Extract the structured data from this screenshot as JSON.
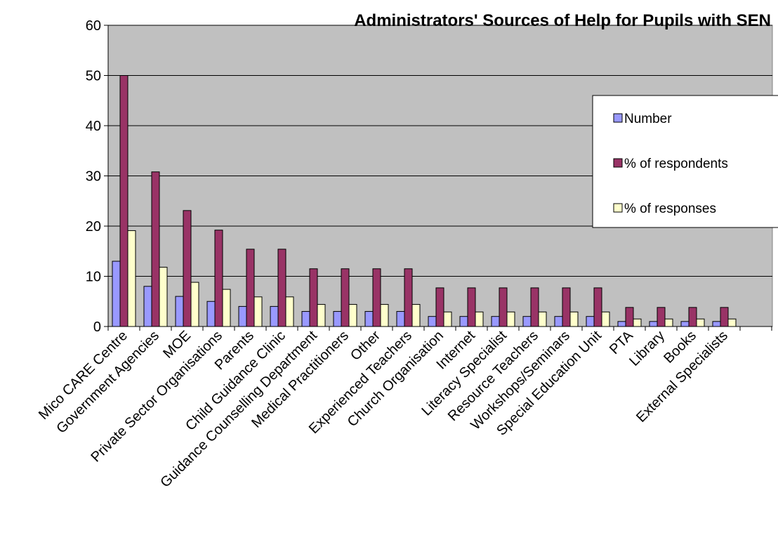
{
  "chart_data": {
    "type": "bar",
    "title": "Administrators' Sources of Help for Pupils with SEN",
    "xlabel": "",
    "ylabel": "",
    "ylim": [
      0,
      60
    ],
    "yticks": [
      0,
      10,
      20,
      30,
      40,
      50,
      60
    ],
    "grid": true,
    "legend_position": "right",
    "categories": [
      "Mico CARE Centre",
      "Government Agencies",
      "MOE",
      "Private Sector Organisations",
      "Parents",
      "Child Guidance Clinic",
      "Guidance Counselling Department",
      "Medical Practitioners",
      "Other",
      "Experienced Teachers",
      "Church Organisation",
      "Internet",
      "Literacy Specialist",
      "Resource Teachers",
      "Workshops/Seminars",
      "Special Education Unit",
      "PTA",
      "Library",
      "Books",
      "External Specialists"
    ],
    "series": [
      {
        "name": "Number",
        "color": "#9999ff",
        "values": [
          13,
          8,
          6,
          5,
          4,
          4,
          3,
          3,
          3,
          3,
          2,
          2,
          2,
          2,
          2,
          2,
          1,
          1,
          1,
          1
        ]
      },
      {
        "name": "% of respondents",
        "color": "#993366",
        "values": [
          50,
          30.8,
          23.1,
          19.2,
          15.4,
          15.4,
          11.5,
          11.5,
          11.5,
          11.5,
          7.7,
          7.7,
          7.7,
          7.7,
          7.7,
          7.7,
          3.8,
          3.8,
          3.8,
          3.8
        ]
      },
      {
        "name": "% of responses",
        "color": "#ffffcc",
        "values": [
          19.1,
          11.8,
          8.8,
          7.4,
          5.9,
          5.9,
          4.4,
          4.4,
          4.4,
          4.4,
          2.9,
          2.9,
          2.9,
          2.9,
          2.9,
          2.9,
          1.5,
          1.5,
          1.5,
          1.5
        ]
      }
    ],
    "colors": {
      "plot_background": "#c0c0c0",
      "gridline": "#000000"
    }
  }
}
